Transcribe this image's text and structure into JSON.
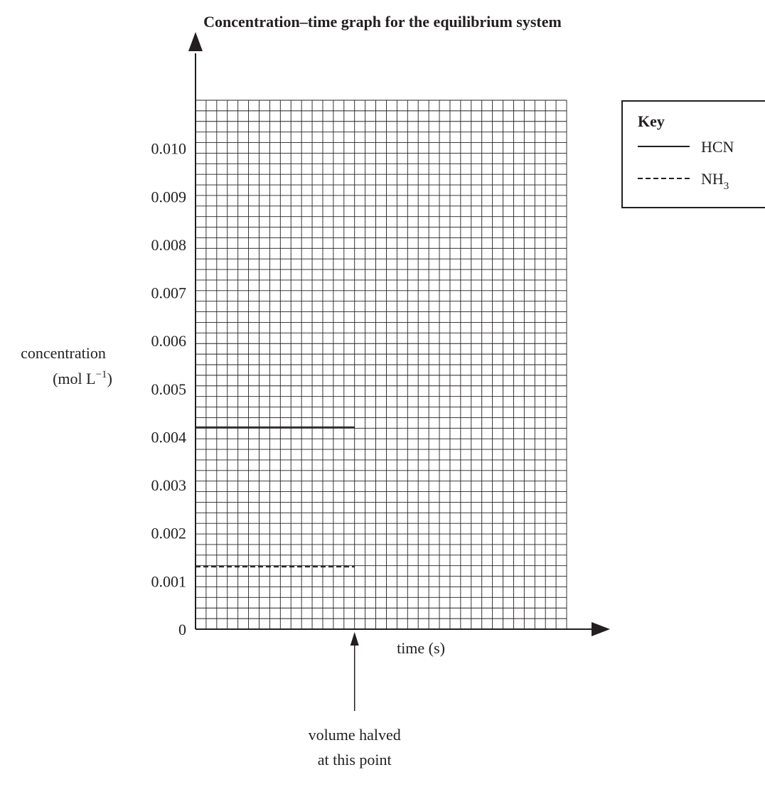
{
  "chart_data": {
    "type": "line",
    "title": "Concentration–time graph for the equilibrium system",
    "xlabel": "time (s)",
    "ylabel": {
      "line1": "concentration",
      "line2_prefix": "(mol L",
      "line2_sup": "−1",
      "line2_suffix": ")"
    },
    "ylim": [
      0,
      0.011
    ],
    "xlim": [
      0,
      35
    ],
    "y_ticks": [
      "0",
      "0.001",
      "0.002",
      "0.003",
      "0.004",
      "0.005",
      "0.006",
      "0.007",
      "0.008",
      "0.009",
      "0.010"
    ],
    "grid": true,
    "legend": {
      "title": "Key",
      "placement": "right",
      "entries": [
        {
          "label": "HCN",
          "sub": "",
          "style": "solid"
        },
        {
          "label": "NH",
          "sub": "3",
          "style": "dashed"
        }
      ]
    },
    "series": [
      {
        "name": "HCN",
        "style": "solid",
        "x": [
          0,
          15
        ],
        "y": [
          0.0042,
          0.0042
        ]
      },
      {
        "name": "NH3",
        "style": "dashed",
        "x": [
          0,
          15
        ],
        "y": [
          0.0013,
          0.0013
        ]
      }
    ],
    "annotation": {
      "x": 15,
      "line1": "volume halved",
      "line2": "at this point"
    }
  }
}
